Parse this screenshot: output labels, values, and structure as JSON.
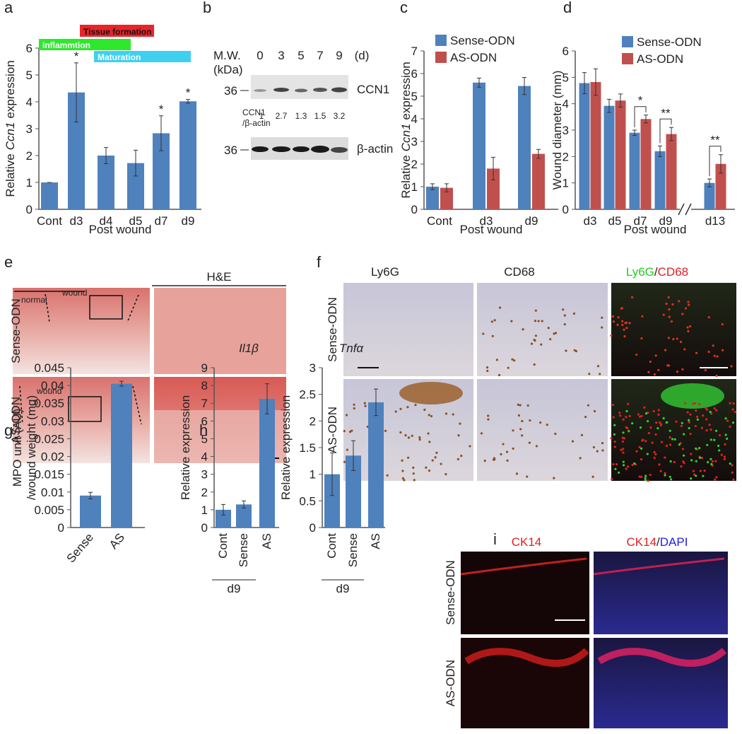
{
  "chart_data": [
    {
      "type": "bar",
      "panel": "a",
      "ylabel": {
        "before": "Relative",
        "italic": "Ccn1",
        "after": "expression"
      },
      "xlabel": "Post wound",
      "categories": [
        "Cont",
        "d3",
        "d4",
        "d5",
        "d7",
        "d9"
      ],
      "values": [
        1,
        4.35,
        2,
        1.72,
        2.83,
        4.02
      ],
      "errors": [
        0,
        1.1,
        0.3,
        0.48,
        0.65,
        0.07
      ],
      "significance": [
        null,
        "*",
        null,
        null,
        "*",
        "*"
      ],
      "color": "#4f81bd",
      "ylim": [
        0,
        6
      ],
      "yticks": [
        0,
        1,
        2,
        3,
        4,
        5,
        6
      ],
      "phases": [
        {
          "label": "Tissue formation",
          "color": "#e8242b"
        },
        {
          "label": "Inflammtion",
          "color": "#2ee82e"
        },
        {
          "label": "Maturation",
          "color": "#3fd0f0"
        }
      ]
    },
    {
      "type": "bar",
      "panel": "c",
      "ylabel": {
        "before": "Relative",
        "italic": "Ccn1",
        "after": "expression"
      },
      "xlabel": "Post wound",
      "categories": [
        "Cont",
        "d3",
        "d9"
      ],
      "series": [
        {
          "name": "Sense-ODN",
          "color": "#4f81bd",
          "values": [
            1,
            5.6,
            5.45
          ],
          "errors": [
            0.13,
            0.2,
            0.38
          ]
        },
        {
          "name": "AS-ODN",
          "color": "#c0504d",
          "values": [
            0.95,
            1.8,
            2.45
          ],
          "errors": [
            0.18,
            0.5,
            0.2
          ]
        }
      ],
      "ylim": [
        0,
        7
      ],
      "yticks": [
        0,
        1,
        2,
        3,
        4,
        5,
        6,
        7
      ]
    },
    {
      "type": "bar",
      "panel": "d",
      "ylabel": "Wound diameter (mm)",
      "xlabel": "Post wound",
      "categories": [
        "d3",
        "d5",
        "d7",
        "d9",
        "d13"
      ],
      "series": [
        {
          "name": "Sense-ODN",
          "color": "#4f81bd",
          "values": [
            4.78,
            3.92,
            2.9,
            2.2,
            1
          ],
          "errors": [
            0.4,
            0.25,
            0.1,
            0.2,
            0.15
          ]
        },
        {
          "name": "AS-ODN",
          "color": "#c0504d",
          "values": [
            4.82,
            4.12,
            3.42,
            2.85,
            1.72
          ],
          "errors": [
            0.5,
            0.25,
            0.15,
            0.25,
            0.35
          ]
        }
      ],
      "significance": [
        null,
        null,
        "*",
        "**",
        "**"
      ],
      "axis_break": true,
      "ylim": [
        0,
        6
      ],
      "yticks": [
        0,
        1,
        2,
        3,
        4,
        5,
        6
      ]
    },
    {
      "type": "bar",
      "panel": "g",
      "ylabel": [
        "MPO unit (AU)",
        "/wound weight (mg)"
      ],
      "categories": [
        "Sense",
        "AS"
      ],
      "values": [
        0.009,
        0.0405
      ],
      "errors": [
        0.0009,
        0.0007
      ],
      "color": "#4f81bd",
      "ylim": [
        0,
        0.045
      ],
      "yticks": [
        0,
        0.005,
        0.01,
        0.015,
        0.02,
        0.025,
        0.03,
        0.035,
        0.04,
        0.045
      ]
    },
    {
      "type": "bar",
      "panel": "h",
      "title": "Il1β",
      "ylabel": "Relative expression",
      "categories": [
        "Cont",
        "Sense",
        "AS"
      ],
      "values": [
        1,
        1.3,
        7.25
      ],
      "errors": [
        0.3,
        0.2,
        0.85
      ],
      "color": "#4f81bd",
      "group_label": "d9",
      "ylim": [
        0,
        9
      ],
      "yticks": [
        0,
        1,
        2,
        3,
        4,
        5,
        6,
        7,
        8,
        9
      ]
    },
    {
      "type": "bar",
      "title": "Tnfα",
      "ylabel": "Relative expression",
      "categories": [
        "Cont",
        "Sense",
        "AS"
      ],
      "values": [
        1,
        1.35,
        2.35
      ],
      "errors": [
        0.4,
        0.28,
        0.25
      ],
      "color": "#4f81bd",
      "group_label": "d9",
      "ylim": [
        0,
        3
      ],
      "yticks": [
        0,
        0.5,
        1,
        1.5,
        2,
        2.5,
        3
      ]
    }
  ],
  "panels": {
    "b": {
      "letter": "b",
      "mw_label": [
        "M.W.",
        "(kDa)"
      ],
      "days": [
        0,
        3,
        5,
        7,
        9
      ],
      "day_unit": "(d)",
      "blots": [
        {
          "name": "CCN1",
          "marker": 36
        },
        {
          "name": "β-actin",
          "marker": 36
        }
      ],
      "ratio_label": [
        "CCN1",
        "/β-actin"
      ],
      "ratios": [
        1,
        2.7,
        1.3,
        1.5,
        3.2
      ]
    },
    "e": {
      "letter": "e",
      "title": "H&E",
      "rows": [
        "Sense-ODN",
        "AS-ODN"
      ],
      "annotations": [
        "normal",
        "wound",
        "wound"
      ]
    },
    "f": {
      "letter": "f",
      "columns": [
        "Ly6G",
        "CD68"
      ],
      "merge": [
        "Ly6G",
        "/",
        "CD68"
      ],
      "rows": [
        "Sense-ODN",
        "AS-ODN"
      ]
    },
    "i": {
      "letter": "i",
      "columns": [
        "CK14"
      ],
      "merge": [
        "CK14",
        "/",
        "DAPI"
      ],
      "rows": [
        "Sense-ODN",
        "AS-ODN"
      ]
    }
  }
}
